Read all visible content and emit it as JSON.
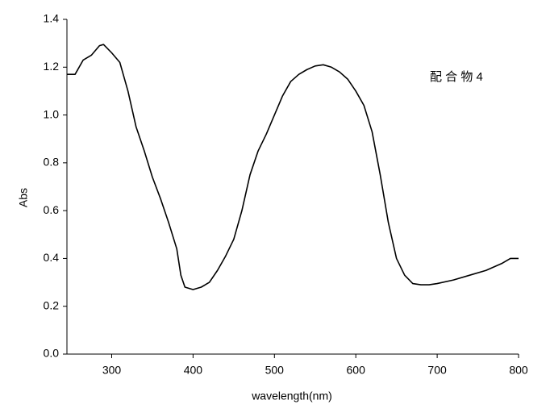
{
  "chart_data": {
    "type": "line",
    "x_label": "wavelength(nm)",
    "y_label": "Abs",
    "annotation": "配 合 物 4",
    "x": [
      245,
      255,
      265,
      275,
      285,
      290,
      300,
      310,
      320,
      330,
      340,
      350,
      360,
      370,
      380,
      385,
      390,
      400,
      410,
      420,
      430,
      440,
      450,
      460,
      470,
      480,
      490,
      500,
      510,
      520,
      530,
      540,
      550,
      560,
      570,
      580,
      590,
      600,
      610,
      620,
      630,
      640,
      650,
      660,
      670,
      680,
      690,
      700,
      720,
      740,
      760,
      780,
      790,
      800
    ],
    "series": [
      {
        "color": "#000000",
        "values": [
          1.17,
          1.17,
          1.23,
          1.25,
          1.29,
          1.295,
          1.26,
          1.22,
          1.1,
          0.95,
          0.85,
          0.74,
          0.65,
          0.55,
          0.44,
          0.33,
          0.28,
          0.27,
          0.28,
          0.3,
          0.35,
          0.41,
          0.48,
          0.6,
          0.75,
          0.85,
          0.92,
          1.0,
          1.08,
          1.14,
          1.17,
          1.19,
          1.205,
          1.21,
          1.2,
          1.18,
          1.15,
          1.1,
          1.04,
          0.93,
          0.75,
          0.55,
          0.4,
          0.33,
          0.295,
          0.29,
          0.29,
          0.295,
          0.31,
          0.33,
          0.35,
          0.38,
          0.4,
          0.4
        ]
      }
    ],
    "xlim": [
      245,
      800
    ],
    "xticks": [
      300,
      400,
      500,
      600,
      700,
      800
    ],
    "ylim": [
      0,
      1.4
    ],
    "yticks": [
      {
        "value": 0,
        "label": "0.0"
      },
      0.2,
      0.4,
      0.6,
      0.8,
      {
        "value": 1,
        "label": "1.0"
      },
      1.2,
      1.4
    ],
    "grid": false
  }
}
